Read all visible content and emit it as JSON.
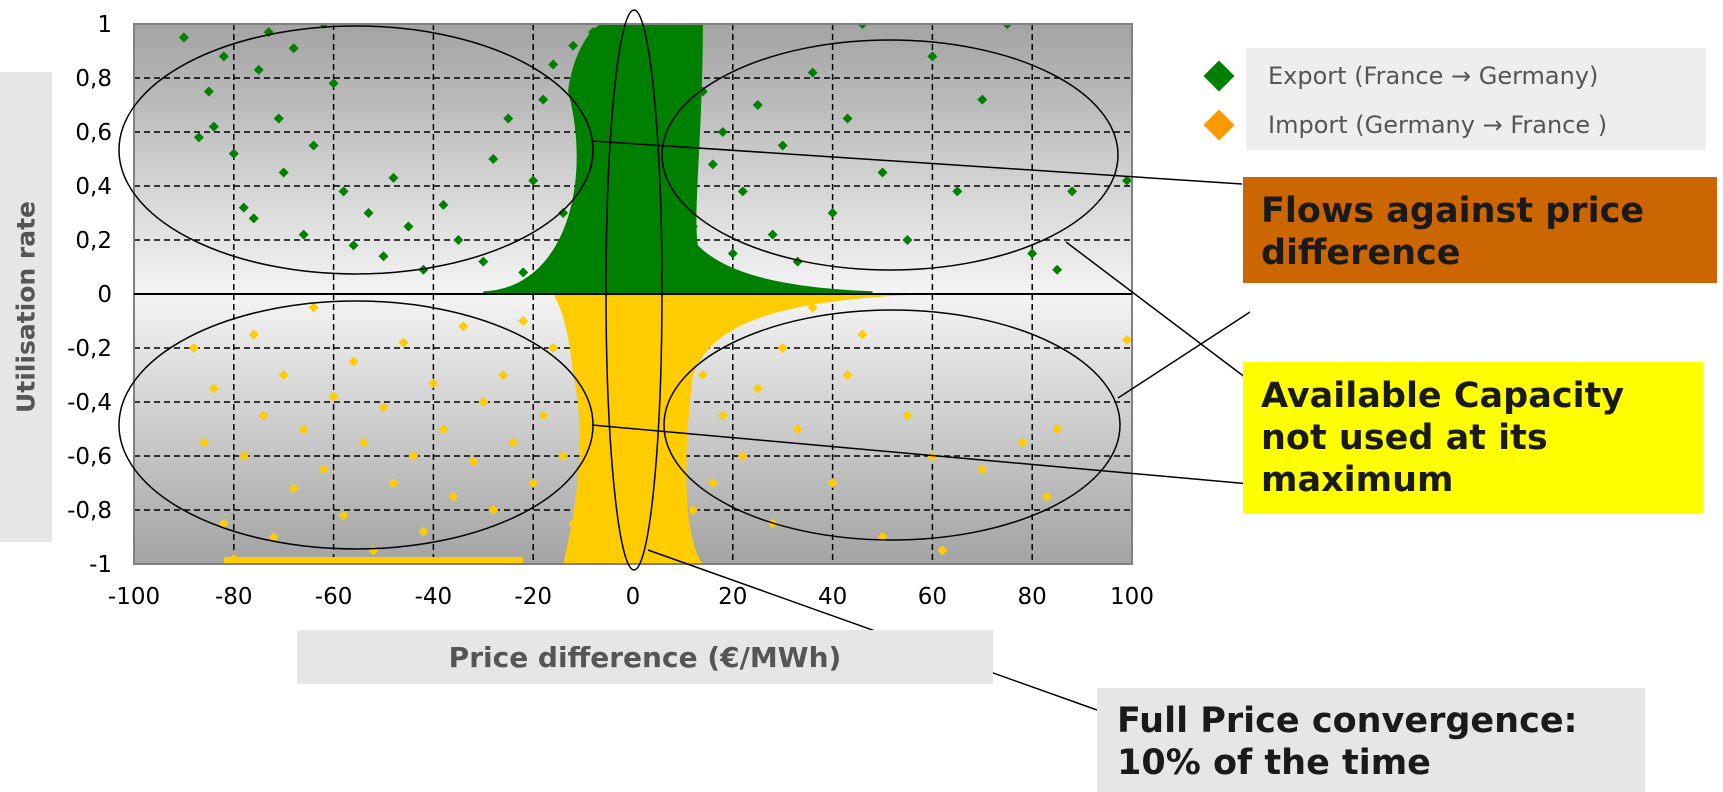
{
  "chart_data": {
    "type": "scatter",
    "title": "",
    "xlabel": "Price difference (€/MWh)",
    "ylabel": "Utilisation rate",
    "xlim": [
      -100,
      100
    ],
    "ylim": [
      -1,
      1
    ],
    "x_ticks": [
      "-100",
      "-80",
      "-60",
      "-40",
      "-20",
      "0",
      "20",
      "40",
      "60",
      "80",
      "100"
    ],
    "y_ticks": [
      "1",
      "0,8",
      "0,6",
      "0,4",
      "0,2",
      "0",
      "-0,2",
      "-0,4",
      "-0,6",
      "-0,8",
      "-1"
    ],
    "grid": true,
    "legend_position": "top-right",
    "series": [
      {
        "name": "Export (France → Germany)",
        "color": "#008000",
        "marker": "diamond",
        "points": [
          [
            -90,
            0.95
          ],
          [
            -87,
            0.58
          ],
          [
            -85,
            0.75
          ],
          [
            -84,
            0.62
          ],
          [
            -82,
            0.88
          ],
          [
            -80,
            0.52
          ],
          [
            -78,
            0.32
          ],
          [
            -76,
            0.28
          ],
          [
            -75,
            0.83
          ],
          [
            -73,
            0.97
          ],
          [
            -71,
            0.65
          ],
          [
            -70,
            0.45
          ],
          [
            -68,
            0.91
          ],
          [
            -66,
            0.22
          ],
          [
            -64,
            0.55
          ],
          [
            -62,
            1.0
          ],
          [
            -60,
            0.78
          ],
          [
            -58,
            0.38
          ],
          [
            -56,
            0.18
          ],
          [
            -53,
            0.3
          ],
          [
            -50,
            0.14
          ],
          [
            -48,
            0.43
          ],
          [
            -45,
            0.25
          ],
          [
            -42,
            0.09
          ],
          [
            -38,
            0.33
          ],
          [
            -35,
            0.2
          ],
          [
            -30,
            0.12
          ],
          [
            -28,
            0.5
          ],
          [
            -25,
            0.65
          ],
          [
            -22,
            0.08
          ],
          [
            -20,
            0.42
          ],
          [
            -18,
            0.72
          ],
          [
            -16,
            0.85
          ],
          [
            -14,
            0.3
          ],
          [
            -12,
            0.92
          ],
          [
            -10,
            0.6
          ],
          [
            -8,
            0.97
          ],
          [
            -6,
            0.45
          ],
          [
            -4,
            0.8
          ],
          [
            -2,
            1.0
          ],
          [
            0,
            0.7
          ],
          [
            2,
            0.9
          ],
          [
            4,
            0.35
          ],
          [
            6,
            0.95
          ],
          [
            8,
            0.55
          ],
          [
            10,
            0.82
          ],
          [
            12,
            0.25
          ],
          [
            14,
            0.75
          ],
          [
            16,
            0.48
          ],
          [
            18,
            0.6
          ],
          [
            20,
            0.15
          ],
          [
            22,
            0.38
          ],
          [
            25,
            0.7
          ],
          [
            28,
            0.22
          ],
          [
            30,
            0.55
          ],
          [
            33,
            0.12
          ],
          [
            36,
            0.82
          ],
          [
            40,
            0.3
          ],
          [
            43,
            0.65
          ],
          [
            46,
            1.0
          ],
          [
            50,
            0.45
          ],
          [
            55,
            0.2
          ],
          [
            60,
            0.88
          ],
          [
            65,
            0.38
          ],
          [
            70,
            0.72
          ],
          [
            75,
            1.0
          ],
          [
            80,
            0.15
          ],
          [
            85,
            0.09
          ],
          [
            88,
            0.38
          ],
          [
            99,
            0.42
          ]
        ]
      },
      {
        "name": "Import (Germany → France )",
        "color": "#ff9900",
        "marker": "diamond",
        "points": [
          [
            -88,
            -0.2
          ],
          [
            -86,
            -0.55
          ],
          [
            -84,
            -0.35
          ],
          [
            -82,
            -0.85
          ],
          [
            -80,
            -0.98
          ],
          [
            -78,
            -0.6
          ],
          [
            -76,
            -0.15
          ],
          [
            -74,
            -0.45
          ],
          [
            -72,
            -0.9
          ],
          [
            -70,
            -0.3
          ],
          [
            -68,
            -0.72
          ],
          [
            -66,
            -0.5
          ],
          [
            -64,
            -0.05
          ],
          [
            -62,
            -0.65
          ],
          [
            -60,
            -0.38
          ],
          [
            -58,
            -0.82
          ],
          [
            -56,
            -0.25
          ],
          [
            -54,
            -0.55
          ],
          [
            -52,
            -0.95
          ],
          [
            -50,
            -0.42
          ],
          [
            -48,
            -0.7
          ],
          [
            -46,
            -0.18
          ],
          [
            -44,
            -0.6
          ],
          [
            -42,
            -0.88
          ],
          [
            -40,
            -0.33
          ],
          [
            -38,
            -0.5
          ],
          [
            -36,
            -0.75
          ],
          [
            -34,
            -0.12
          ],
          [
            -32,
            -0.62
          ],
          [
            -30,
            -0.4
          ],
          [
            -28,
            -0.8
          ],
          [
            -26,
            -0.3
          ],
          [
            -24,
            -0.55
          ],
          [
            -22,
            -0.1
          ],
          [
            -20,
            -0.7
          ],
          [
            -18,
            -0.45
          ],
          [
            -16,
            -0.2
          ],
          [
            -14,
            -0.6
          ],
          [
            -12,
            -0.85
          ],
          [
            -10,
            -0.35
          ],
          [
            -8,
            -0.05
          ],
          [
            -6,
            -0.95
          ],
          [
            -4,
            -0.5
          ],
          [
            -2,
            -0.75
          ],
          [
            0,
            -0.25
          ],
          [
            2,
            -0.9
          ],
          [
            4,
            -0.4
          ],
          [
            6,
            -0.65
          ],
          [
            8,
            -0.15
          ],
          [
            10,
            -0.55
          ],
          [
            12,
            -0.8
          ],
          [
            14,
            -0.3
          ],
          [
            16,
            -0.7
          ],
          [
            18,
            -0.45
          ],
          [
            20,
            -0.1
          ],
          [
            22,
            -0.6
          ],
          [
            25,
            -0.35
          ],
          [
            28,
            -0.85
          ],
          [
            30,
            -0.2
          ],
          [
            33,
            -0.5
          ],
          [
            36,
            -0.05
          ],
          [
            40,
            -0.7
          ],
          [
            43,
            -0.3
          ],
          [
            46,
            -0.15
          ],
          [
            50,
            -0.9
          ],
          [
            55,
            -0.45
          ],
          [
            60,
            -0.6
          ],
          [
            62,
            -0.95
          ],
          [
            70,
            -0.65
          ],
          [
            78,
            -0.55
          ],
          [
            83,
            -0.75
          ],
          [
            85,
            -0.5
          ],
          [
            99,
            -0.17
          ]
        ]
      }
    ],
    "annotations": [
      "Flows against price difference",
      "Available Capacity not used at its maximum",
      "Full Price convergence: 10% of the time"
    ]
  },
  "colors": {
    "export": "#008000",
    "import": "#ffcc00",
    "import_legend": "#ff9900",
    "annotation_flows": "#cc6600",
    "annotation_capacity": "#ffff00",
    "annotation_convergence": "#e6e6e6"
  }
}
